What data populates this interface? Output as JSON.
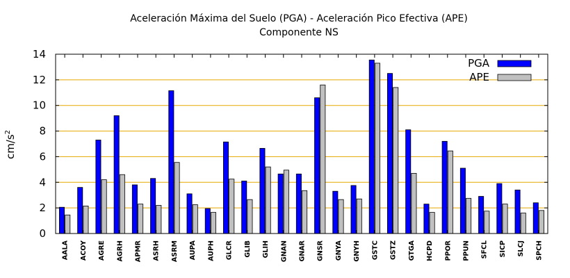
{
  "chart_data": {
    "type": "bar",
    "title": "Aceleración Máxima del Suelo (PGA) -  Aceleración Pico Efectiva (APE)",
    "subtitle": "Componente NS",
    "xlabel": "",
    "ylabel": "cm/s",
    "ylabel_sup": "2",
    "ylim": [
      0,
      14
    ],
    "yticks": [
      0,
      2,
      4,
      6,
      8,
      10,
      12,
      14
    ],
    "grid": true,
    "legend_position": "top-right",
    "categories": [
      "AALA",
      "ACOY",
      "AGRE",
      "AGRH",
      "APMR",
      "ASRH",
      "ASRM",
      "AUPA",
      "AUPH",
      "GLCR",
      "GLIB",
      "GLIH",
      "GNAN",
      "GNAR",
      "GNSR",
      "GNYA",
      "GNYH",
      "GSTC",
      "GSTZ",
      "GTGA",
      "HCPD",
      "PPOR",
      "PPUN",
      "SFCL",
      "SICP",
      "SLCJ",
      "SPCH"
    ],
    "series": [
      {
        "name": "PGA",
        "color": "#0000ff",
        "values": [
          2.05,
          3.6,
          7.3,
          9.2,
          3.8,
          4.3,
          11.15,
          3.1,
          1.95,
          7.15,
          4.1,
          6.65,
          4.65,
          4.65,
          10.6,
          3.3,
          3.75,
          13.55,
          12.5,
          8.1,
          2.3,
          7.2,
          5.1,
          2.9,
          3.9,
          3.4,
          2.4
        ]
      },
      {
        "name": "APE",
        "color": "#c0c0c0",
        "values": [
          1.45,
          2.15,
          4.2,
          4.6,
          2.3,
          2.2,
          5.55,
          2.25,
          1.65,
          4.25,
          2.65,
          5.2,
          4.95,
          3.35,
          11.6,
          2.65,
          2.7,
          13.3,
          11.4,
          4.7,
          1.65,
          6.45,
          2.75,
          1.75,
          2.3,
          1.6,
          1.8
        ]
      }
    ],
    "colors": {
      "grid": "#e6a800",
      "axis": "#000000"
    }
  }
}
